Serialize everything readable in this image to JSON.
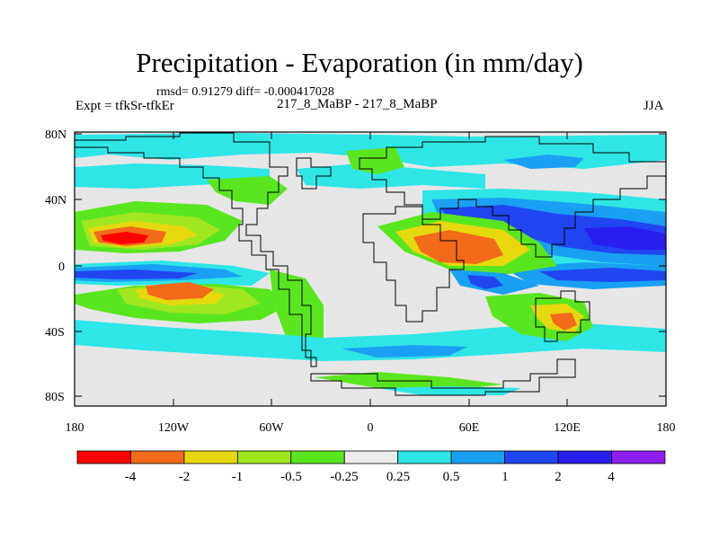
{
  "header": {
    "title": "Precipitation - Evaporation (in mm/day)",
    "stats": "rmsd= 0.91279 diff= -0.000417028",
    "experiment": "Expt = tfkSr-tfkEr",
    "case": "217_8_MaBP - 217_8_MaBP",
    "season": "JJA"
  },
  "axes": {
    "y_ticks": [
      "80N",
      "40N",
      "0",
      "40S",
      "80S"
    ],
    "x_ticks": [
      "180",
      "120W",
      "60W",
      "0",
      "60E",
      "120E",
      "180"
    ]
  },
  "colorbar": {
    "colors": [
      "#ff0000",
      "#f26a1a",
      "#e6d80f",
      "#a0e61e",
      "#5ae61e",
      "#ececec",
      "#2ee6e6",
      "#1aa0f2",
      "#2046f2",
      "#2a1ef0",
      "#8c1ef0"
    ],
    "labels": [
      "-4",
      "-2",
      "-1",
      "-0.5",
      "-0.25",
      "0.25",
      "0.5",
      "1",
      "2",
      "4"
    ]
  },
  "map_fills": {
    "background": "#e6e6e6",
    "strong_neg": "#ff0000",
    "neg": "#f26a1a",
    "mod_neg": "#e6d80f",
    "light_neg": "#a0e61e",
    "weak_neg": "#5ae61e",
    "weak_pos": "#2ee6e6",
    "mod_pos": "#1aa0f2",
    "pos": "#2046f2",
    "strong_pos": "#2a1ef0"
  }
}
